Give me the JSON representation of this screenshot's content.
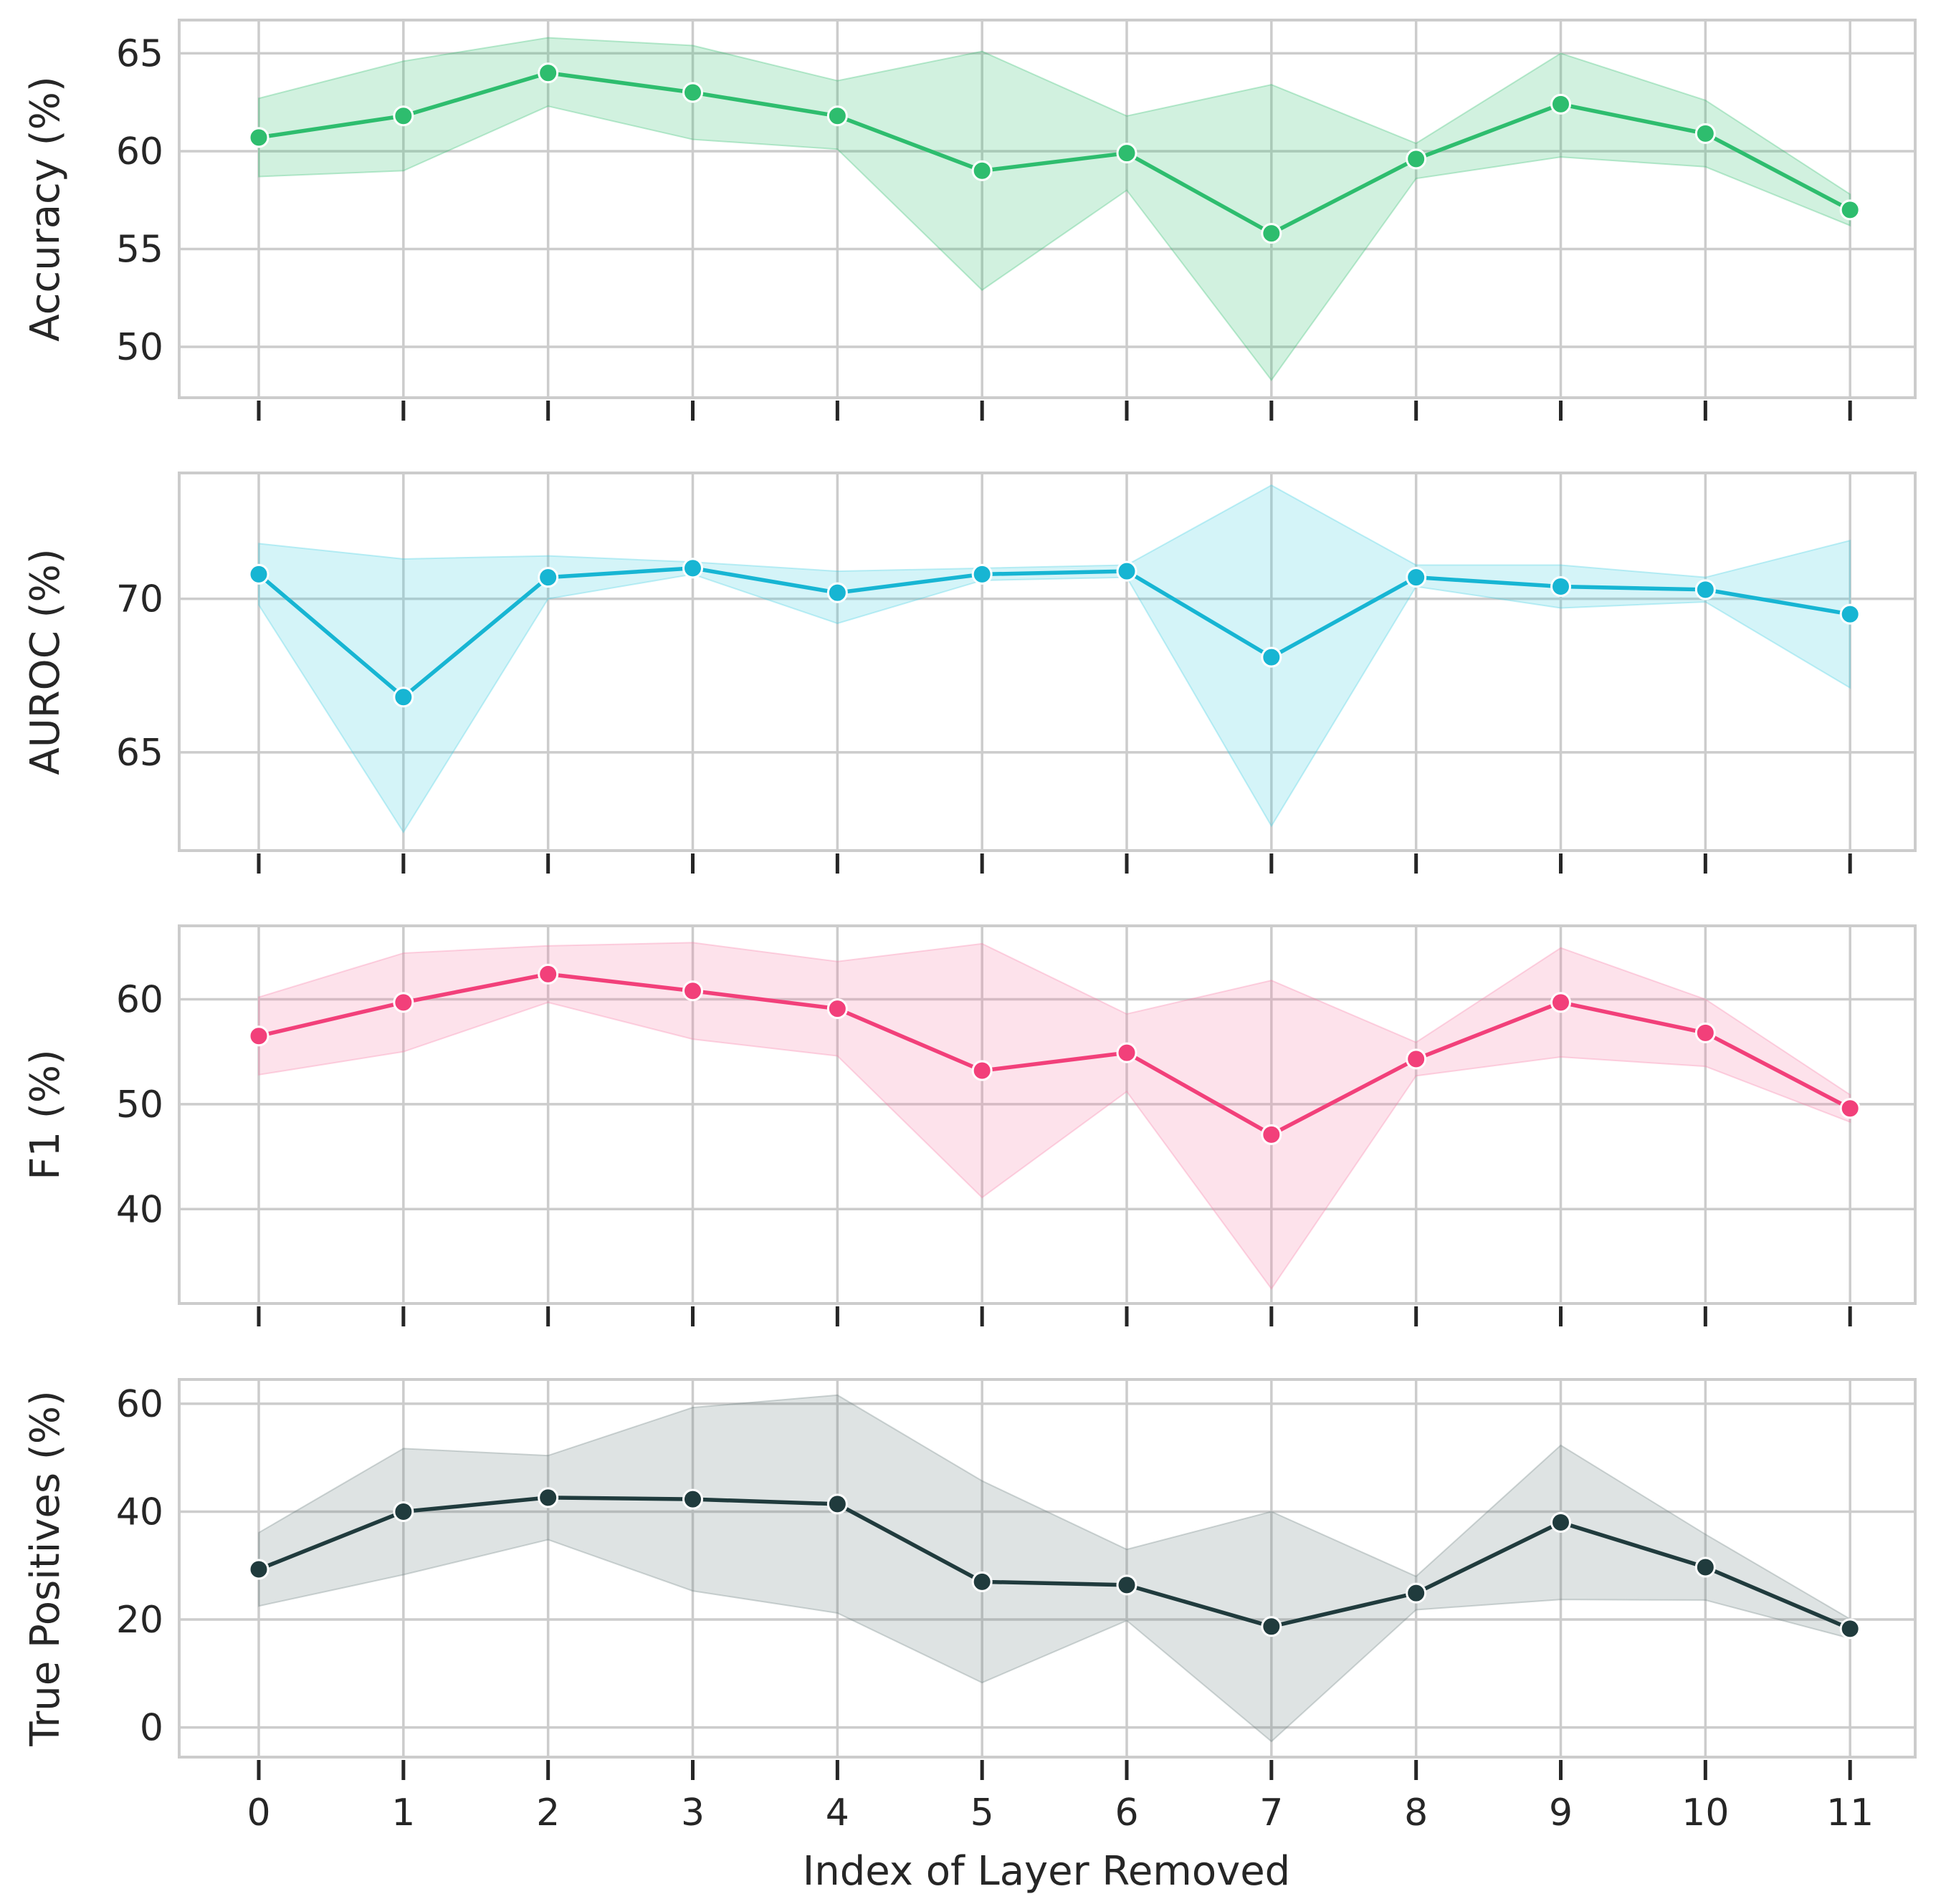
{
  "chart_data": {
    "type": "line",
    "xlabel": "Index of Layer Removed",
    "x": [
      0,
      1,
      2,
      3,
      4,
      5,
      6,
      7,
      8,
      9,
      10,
      11
    ],
    "x_tick_labels": [
      "0",
      "1",
      "2",
      "3",
      "4",
      "5",
      "6",
      "7",
      "8",
      "9",
      "10",
      "11"
    ],
    "xlim": [
      -0.55,
      11.45
    ],
    "panels": [
      {
        "ylabel": "Accuracy (%)",
        "color": "#2ebd6e",
        "band_color": "#2ebd6e",
        "ylim": [
          47.4,
          66.7
        ],
        "yticks": [
          50,
          55,
          60,
          65
        ],
        "yticklabels": [
          "50",
          "55",
          "60",
          "65"
        ],
        "values": [
          60.7,
          61.8,
          64.0,
          63.0,
          61.8,
          59.0,
          59.9,
          55.8,
          59.6,
          62.4,
          60.9,
          57.0
        ],
        "upper": [
          62.7,
          64.6,
          65.8,
          65.4,
          63.6,
          65.1,
          61.8,
          63.4,
          60.4,
          65.0,
          62.6,
          57.8
        ],
        "lower": [
          58.7,
          59.0,
          62.3,
          60.6,
          60.1,
          52.9,
          58.0,
          48.3,
          58.6,
          59.7,
          59.2,
          56.2
        ]
      },
      {
        "ylabel": "AUROC (%)",
        "color": "#17b5d3",
        "band_color": "#3ccde0",
        "ylim": [
          61.8,
          74.1
        ],
        "yticks": [
          65,
          70
        ],
        "yticklabels": [
          "65",
          "70"
        ],
        "values": [
          70.8,
          66.8,
          70.7,
          71.0,
          70.2,
          70.8,
          70.9,
          68.1,
          70.7,
          70.4,
          70.3,
          69.5
        ],
        "upper": [
          71.8,
          71.3,
          71.4,
          71.2,
          70.9,
          71.0,
          71.1,
          73.7,
          71.1,
          71.1,
          70.7,
          71.9
        ],
        "lower": [
          69.8,
          62.4,
          70.0,
          70.8,
          69.2,
          70.6,
          70.7,
          62.6,
          70.4,
          69.7,
          69.9,
          67.1
        ]
      },
      {
        "ylabel": "F1 (%)",
        "color": "#f2407a",
        "band_color": "#f77aa4",
        "ylim": [
          31.0,
          67.0
        ],
        "yticks": [
          40,
          50,
          60
        ],
        "yticklabels": [
          "40",
          "50",
          "60"
        ],
        "values": [
          56.5,
          59.7,
          62.4,
          60.8,
          59.1,
          53.2,
          54.9,
          47.1,
          54.3,
          59.7,
          56.8,
          49.6
        ],
        "upper": [
          60.2,
          64.4,
          65.1,
          65.4,
          63.6,
          65.3,
          58.6,
          61.8,
          55.9,
          64.9,
          60.0,
          50.9
        ],
        "lower": [
          52.8,
          55.0,
          59.7,
          56.2,
          54.6,
          41.1,
          51.2,
          32.4,
          52.7,
          54.5,
          53.6,
          48.3
        ]
      },
      {
        "ylabel": "True Positives (%)",
        "color": "#203b3d",
        "band_color": "#6b7f7f",
        "ylim": [
          -5.5,
          64.5
        ],
        "yticks": [
          0,
          20,
          40,
          60
        ],
        "yticklabels": [
          "0",
          "20",
          "40",
          "60"
        ],
        "values": [
          29.3,
          40.0,
          42.6,
          42.3,
          41.4,
          27.0,
          26.4,
          18.7,
          24.9,
          38.0,
          29.7,
          18.3
        ],
        "upper": [
          36.1,
          51.7,
          50.4,
          59.3,
          61.6,
          45.7,
          33.0,
          40.0,
          28.0,
          52.3,
          35.8,
          20.1
        ],
        "lower": [
          22.5,
          28.3,
          34.8,
          25.3,
          21.2,
          8.3,
          19.8,
          -2.6,
          21.8,
          23.7,
          23.6,
          16.5
        ]
      }
    ]
  }
}
